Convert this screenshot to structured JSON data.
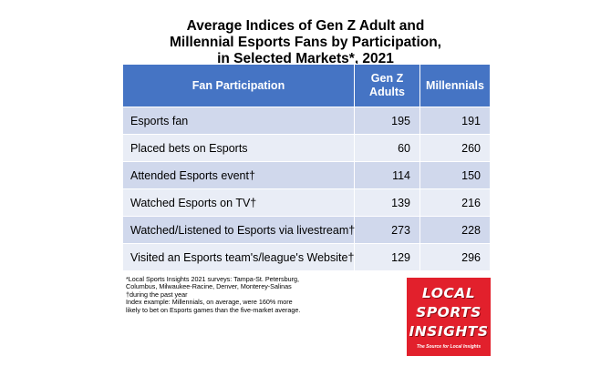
{
  "chart_data": {
    "type": "table",
    "title_lines": [
      "Average Indices of Gen Z Adult and",
      "Millennial Esports Fans by Participation,",
      "in Selected Markets*, 2021"
    ],
    "columns": [
      "Fan Participation",
      "Gen Z Adults",
      "Millennials"
    ],
    "rows": [
      {
        "label": "Esports fan",
        "gen_z": 195,
        "millennials": 191
      },
      {
        "label": "Placed bets on Esports",
        "gen_z": 60,
        "millennials": 260
      },
      {
        "label": "Attended Esports event†",
        "gen_z": 114,
        "millennials": 150
      },
      {
        "label": "Watched Esports on TV†",
        "gen_z": 139,
        "millennials": 216
      },
      {
        "label": "Watched/Listened to Esports via livestream†",
        "gen_z": 273,
        "millennials": 228
      },
      {
        "label": "Visited an Esports team's/league's Website†",
        "gen_z": 129,
        "millennials": 296
      }
    ],
    "header_color": "#4574c4",
    "row_colors": [
      "#d0d8ec",
      "#e9edf6"
    ]
  },
  "footnotes": [
    "*Local Sports Insights 2021 surveys: Tampa-St. Petersburg, Columbus, Milwaukee-Racine, Denver, Monterey-Salinas",
    "†during the past year",
    "Index example: Millennials, on average, were 160% more likely to bet on Esports games than the five-market average."
  ],
  "logo": {
    "words": [
      "LOCAL",
      "SPORTS",
      "INSIGHTS"
    ],
    "tagline": "The Source for Local Insights",
    "color": "#e2202c"
  }
}
